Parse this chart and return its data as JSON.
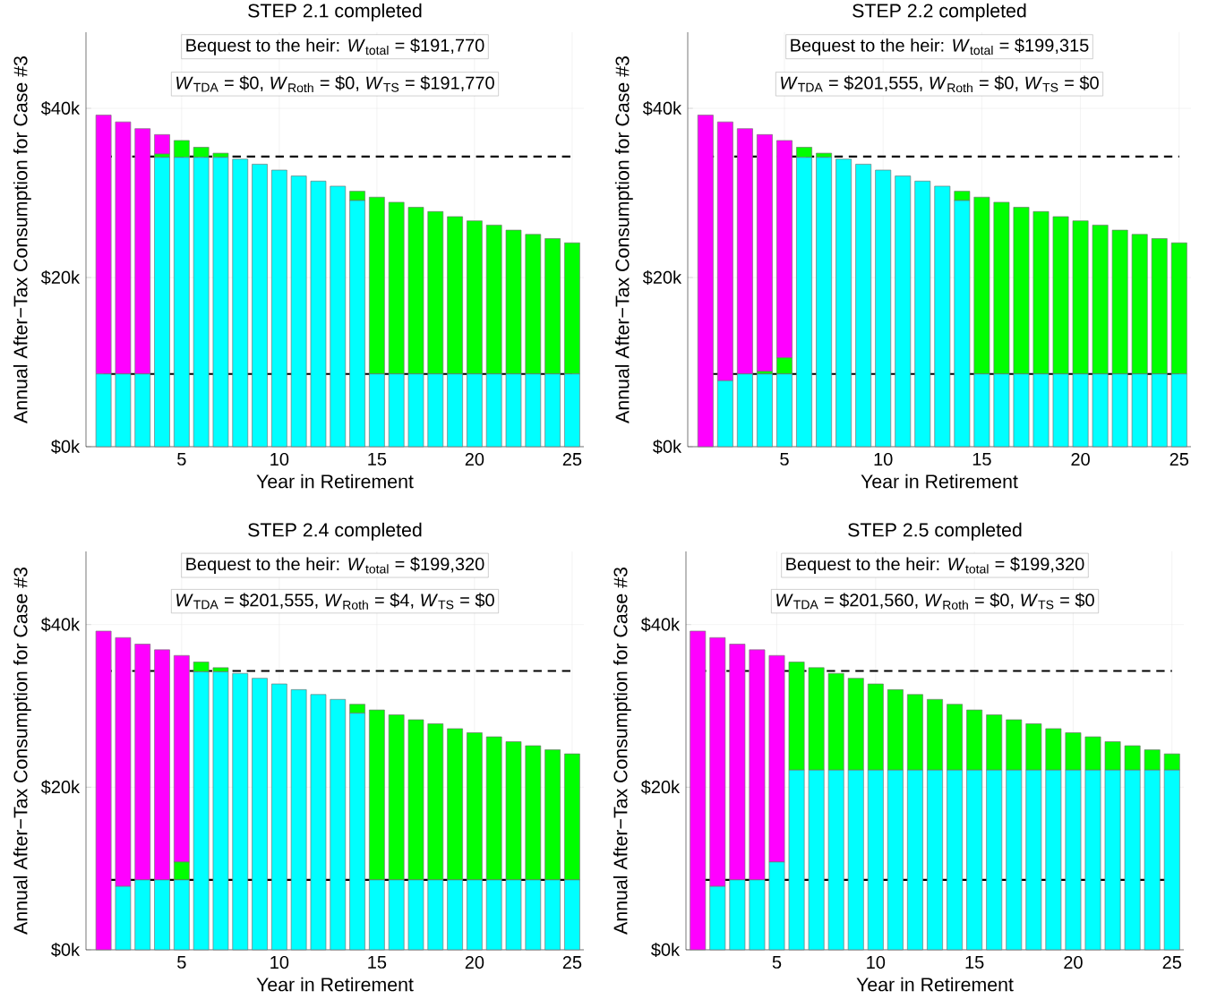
{
  "chart_data": [
    {
      "type": "bar",
      "stacked": true,
      "title": "STEP 2.1 completed",
      "xlabel": "Year in Retirement",
      "ylabel": "Annual After−Tax Consumption for Case #3",
      "grid": true,
      "annotations": [
        "Bequest to the heir:  *W*$_{total}$ = $191,770",
        "*W*$_{TDA}$ = $0,  *W*$_{Roth}$ = $0,  *W*$_{TS}$ = $191,770"
      ],
      "x": [
        1,
        2,
        3,
        4,
        5,
        6,
        7,
        8,
        9,
        10,
        11,
        12,
        13,
        14,
        15,
        16,
        17,
        18,
        19,
        20,
        21,
        22,
        23,
        24,
        25
      ],
      "xlim": [
        0.1,
        25.6
      ],
      "xticks": [
        5,
        10,
        15,
        20,
        25
      ],
      "ylim": [
        0,
        49000
      ],
      "yticks": [
        {
          "value": 0,
          "label": "$0k"
        },
        {
          "value": 20000,
          "label": "$20k"
        },
        {
          "value": 40000,
          "label": "$40k"
        }
      ],
      "ref_lines": [
        {
          "axis": "y",
          "value": 34300,
          "color": "#000000",
          "line_style": "dashed"
        },
        {
          "axis": "y",
          "value": 8600,
          "color": "#000000",
          "line_style": "solid"
        }
      ],
      "series": [
        {
          "color": "#00ffff",
          "values": [
            8600,
            8600,
            8600,
            34200,
            34200,
            34200,
            34200,
            34000,
            33400,
            32700,
            32000,
            31400,
            30800,
            29100,
            8600,
            8600,
            8600,
            8600,
            8600,
            8600,
            8600,
            8600,
            8600,
            8600,
            8600
          ]
        },
        {
          "color": "#00ff00",
          "values": [
            0,
            0,
            0,
            400,
            2000,
            1200,
            500,
            0,
            0,
            0,
            0,
            0,
            0,
            1100,
            20900,
            20300,
            19700,
            19200,
            18600,
            18100,
            17600,
            17000,
            16500,
            16000,
            15500
          ]
        },
        {
          "color": "#ff00ff",
          "values": [
            30600,
            29800,
            29000,
            2300,
            0,
            0,
            0,
            0,
            0,
            0,
            0,
            0,
            0,
            0,
            0,
            0,
            0,
            0,
            0,
            0,
            0,
            0,
            0,
            0,
            0
          ]
        }
      ]
    },
    {
      "type": "bar",
      "stacked": true,
      "title": "STEP 2.2 completed",
      "xlabel": "Year in Retirement",
      "ylabel": "Annual After−Tax Consumption for Case #3",
      "grid": true,
      "annotations": [
        "Bequest to the heir:  *W*$_{total}$ = $199,315",
        "*W*$_{TDA}$ = $201,555,  *W*$_{Roth}$ = $0,  *W*$_{TS}$ = $0"
      ],
      "x": [
        1,
        2,
        3,
        4,
        5,
        6,
        7,
        8,
        9,
        10,
        11,
        12,
        13,
        14,
        15,
        16,
        17,
        18,
        19,
        20,
        21,
        22,
        23,
        24,
        25
      ],
      "xlim": [
        0.1,
        25.6
      ],
      "xticks": [
        5,
        10,
        15,
        20,
        25
      ],
      "ylim": [
        0,
        49000
      ],
      "yticks": [
        {
          "value": 0,
          "label": "$0k"
        },
        {
          "value": 20000,
          "label": "$20k"
        },
        {
          "value": 40000,
          "label": "$40k"
        }
      ],
      "ref_lines": [
        {
          "axis": "y",
          "value": 34300,
          "color": "#000000",
          "line_style": "dashed"
        },
        {
          "axis": "y",
          "value": 8600,
          "color": "#000000",
          "line_style": "solid"
        }
      ],
      "series": [
        {
          "color": "#00ffff",
          "values": [
            0,
            7800,
            8600,
            8600,
            8600,
            34200,
            34200,
            34000,
            33400,
            32700,
            32000,
            31400,
            30800,
            29100,
            8600,
            8600,
            8600,
            8600,
            8600,
            8600,
            8600,
            8600,
            8600,
            8600,
            8600
          ]
        },
        {
          "color": "#00ff00",
          "values": [
            0,
            0,
            0,
            300,
            1900,
            1200,
            500,
            0,
            0,
            0,
            0,
            0,
            0,
            1100,
            20900,
            20300,
            19700,
            19200,
            18600,
            18100,
            17600,
            17000,
            16500,
            16000,
            15500
          ]
        },
        {
          "color": "#ff00ff",
          "values": [
            39200,
            30600,
            29000,
            28000,
            25700,
            0,
            0,
            0,
            0,
            0,
            0,
            0,
            0,
            0,
            0,
            0,
            0,
            0,
            0,
            0,
            0,
            0,
            0,
            0,
            0
          ]
        }
      ]
    },
    {
      "type": "bar",
      "stacked": true,
      "title": "STEP 2.4 completed",
      "xlabel": "Year in Retirement",
      "ylabel": "Annual After−Tax Consumption for Case #3",
      "grid": true,
      "annotations": [
        "Bequest to the heir:  *W*$_{total}$ = $199,320",
        "*W*$_{TDA}$ = $201,555,  *W*$_{Roth}$ = $4,  *W*$_{TS}$ = $0"
      ],
      "x": [
        1,
        2,
        3,
        4,
        5,
        6,
        7,
        8,
        9,
        10,
        11,
        12,
        13,
        14,
        15,
        16,
        17,
        18,
        19,
        20,
        21,
        22,
        23,
        24,
        25
      ],
      "xlim": [
        0.1,
        25.6
      ],
      "xticks": [
        5,
        10,
        15,
        20,
        25
      ],
      "ylim": [
        0,
        49000
      ],
      "yticks": [
        {
          "value": 0,
          "label": "$0k"
        },
        {
          "value": 20000,
          "label": "$20k"
        },
        {
          "value": 40000,
          "label": "$40k"
        }
      ],
      "ref_lines": [
        {
          "axis": "y",
          "value": 34300,
          "color": "#000000",
          "line_style": "dashed"
        },
        {
          "axis": "y",
          "value": 8600,
          "color": "#000000",
          "line_style": "solid"
        }
      ],
      "series": [
        {
          "color": "#00ffff",
          "values": [
            0,
            7800,
            8600,
            8600,
            8600,
            34200,
            34200,
            34000,
            33400,
            32700,
            32000,
            31400,
            30800,
            29100,
            8600,
            8600,
            8600,
            8600,
            8600,
            8600,
            8600,
            8600,
            8600,
            8600,
            8600
          ]
        },
        {
          "color": "#00ff00",
          "values": [
            0,
            0,
            0,
            0,
            2200,
            1200,
            500,
            0,
            0,
            0,
            0,
            0,
            0,
            1100,
            20900,
            20300,
            19700,
            19200,
            18600,
            18100,
            17600,
            17000,
            16500,
            16000,
            15500
          ]
        },
        {
          "color": "#ff00ff",
          "values": [
            39200,
            30600,
            29000,
            28300,
            25400,
            0,
            0,
            0,
            0,
            0,
            0,
            0,
            0,
            0,
            0,
            0,
            0,
            0,
            0,
            0,
            0,
            0,
            0,
            0,
            0
          ]
        }
      ]
    },
    {
      "type": "bar",
      "stacked": true,
      "title": "STEP 2.5 completed",
      "xlabel": "Year in Retirement",
      "ylabel": "Annual After−Tax Consumption for Case #3",
      "grid": true,
      "annotations": [
        "Bequest to the heir:  *W*$_{total}$ = $199,320",
        "*W*$_{TDA}$ = $201,560,  *W*$_{Roth}$ = $0,  *W*$_{TS}$ = $0"
      ],
      "x": [
        1,
        2,
        3,
        4,
        5,
        6,
        7,
        8,
        9,
        10,
        11,
        12,
        13,
        14,
        15,
        16,
        17,
        18,
        19,
        20,
        21,
        22,
        23,
        24,
        25
      ],
      "xlim": [
        0.4,
        25.6
      ],
      "xticks": [
        5,
        10,
        15,
        20,
        25
      ],
      "ylim": [
        0,
        49000
      ],
      "yticks": [
        {
          "value": 0,
          "label": "$0k"
        },
        {
          "value": 20000,
          "label": "$20k"
        },
        {
          "value": 40000,
          "label": "$40k"
        }
      ],
      "ref_lines": [
        {
          "axis": "y",
          "value": 34300,
          "color": "#000000",
          "line_style": "dashed"
        },
        {
          "axis": "y",
          "value": 8600,
          "color": "#000000",
          "line_style": "solid"
        }
      ],
      "series": [
        {
          "color": "#00ffff",
          "values": [
            0,
            7800,
            8600,
            8600,
            10800,
            22100,
            22100,
            22100,
            22100,
            22100,
            22100,
            22100,
            22100,
            22100,
            22100,
            22100,
            22100,
            22100,
            22100,
            22100,
            22100,
            22100,
            22100,
            22100,
            22100
          ]
        },
        {
          "color": "#00ff00",
          "values": [
            0,
            0,
            0,
            0,
            0,
            13300,
            12600,
            11900,
            11300,
            10600,
            9900,
            9300,
            8700,
            8100,
            7400,
            6800,
            6200,
            5700,
            5100,
            4600,
            4100,
            3500,
            3000,
            2500,
            2000
          ]
        },
        {
          "color": "#ff00ff",
          "values": [
            39200,
            30600,
            29000,
            28300,
            25400,
            0,
            0,
            0,
            0,
            0,
            0,
            0,
            0,
            0,
            0,
            0,
            0,
            0,
            0,
            0,
            0,
            0,
            0,
            0,
            0
          ]
        }
      ]
    }
  ]
}
